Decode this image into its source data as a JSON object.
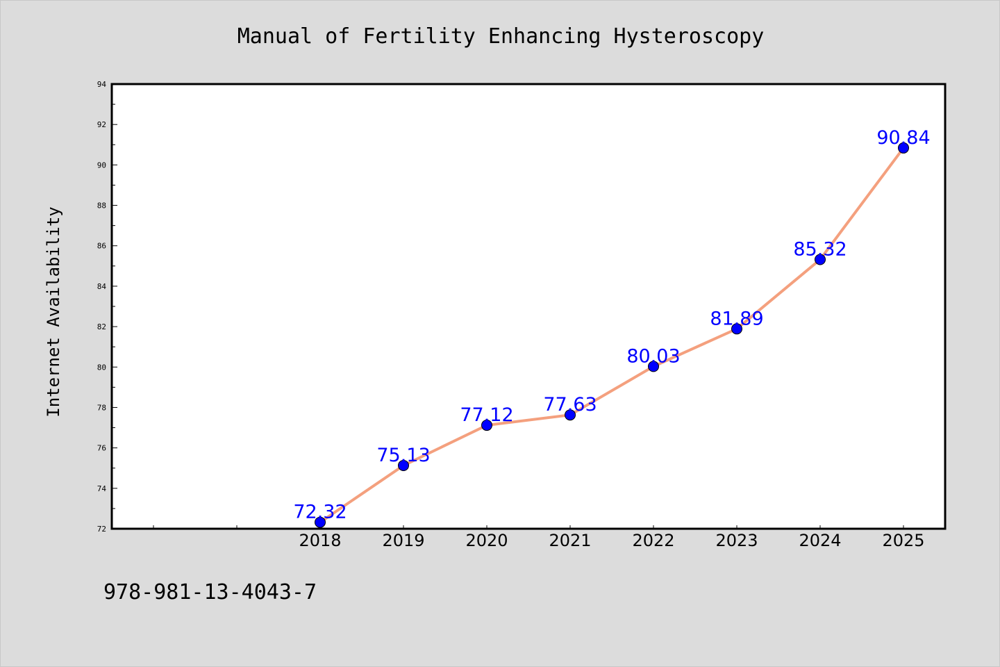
{
  "chart_data": {
    "type": "line",
    "title": "Manual of Fertility Enhancing Hysteroscopy",
    "xlabel": "",
    "ylabel": "Internet Availability",
    "categories": [
      "2018",
      "2019",
      "2020",
      "2021",
      "2022",
      "2023",
      "2024",
      "2025"
    ],
    "series": [
      {
        "values": [
          72.32,
          75.13,
          77.12,
          77.63,
          80.03,
          81.89,
          85.32,
          90.84
        ],
        "labels": [
          "72.32",
          "75.13",
          "77.12",
          "77.63",
          "80.03",
          "81.89",
          "85.32",
          "90.84"
        ],
        "line_color": "#f4a07e",
        "marker_color": "#0000ff"
      }
    ],
    "ylim": [
      72,
      94
    ],
    "yticks": [
      72,
      74,
      76,
      78,
      80,
      82,
      84,
      86,
      88,
      90,
      92,
      94
    ],
    "grid": false,
    "legend": "none",
    "label_color": "#0000ff"
  },
  "footer": {
    "isbn": "978-981-13-4043-7"
  },
  "colors": {
    "background": "#dcdcdc",
    "plot_area": "#ffffff",
    "axis": "#000000"
  }
}
